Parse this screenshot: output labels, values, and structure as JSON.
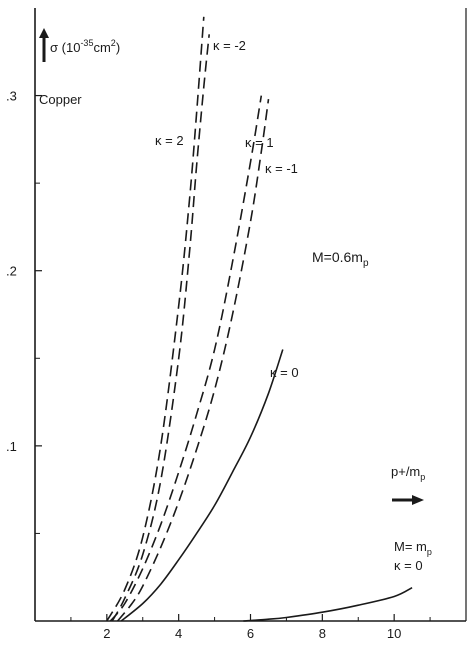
{
  "chart_data": {
    "type": "line",
    "xlabel": "p+/m",
    "xlabel_sub": "p",
    "ylabel_prefix": "σ (10",
    "ylabel_exp1": "-35",
    "ylabel_mid": "cm",
    "ylabel_exp2": "2",
    "ylabel_suffix": ")",
    "material_label": "Copper",
    "xlim": [
      0,
      12
    ],
    "ylim": [
      0,
      0.35
    ],
    "xticks": [
      2,
      4,
      6,
      8,
      10
    ],
    "yticks": [
      0.1,
      0.2,
      0.3
    ],
    "ytick_labels": [
      ".1",
      ".2",
      ".3"
    ],
    "group_label_M06_prefix": "M=0.6m",
    "group_label_M06_sub": "p",
    "group_label_Mmp_line1_prefix": "M= m",
    "group_label_Mmp_line1_sub": "p",
    "group_label_Mmp_line2": "κ = 0",
    "series": [
      {
        "name": "κ = -2",
        "dashed": true,
        "points": [
          [
            2.15,
            0.0
          ],
          [
            2.5,
            0.013
          ],
          [
            3.0,
            0.038
          ],
          [
            3.5,
            0.08
          ],
          [
            4.0,
            0.15
          ],
          [
            4.3,
            0.21
          ],
          [
            4.5,
            0.26
          ],
          [
            4.7,
            0.305
          ],
          [
            4.85,
            0.335
          ]
        ]
      },
      {
        "name": "κ = 2",
        "dashed": true,
        "points": [
          [
            2.0,
            0.0
          ],
          [
            2.5,
            0.018
          ],
          [
            3.0,
            0.048
          ],
          [
            3.5,
            0.1
          ],
          [
            4.0,
            0.18
          ],
          [
            4.3,
            0.24
          ],
          [
            4.5,
            0.29
          ],
          [
            4.7,
            0.345
          ]
        ]
      },
      {
        "name": "κ = 1",
        "dashed": true,
        "points": [
          [
            2.1,
            0.0
          ],
          [
            2.5,
            0.01
          ],
          [
            3.0,
            0.03
          ],
          [
            3.5,
            0.055
          ],
          [
            4.0,
            0.085
          ],
          [
            4.5,
            0.118
          ],
          [
            5.0,
            0.155
          ],
          [
            5.5,
            0.205
          ],
          [
            6.0,
            0.262
          ],
          [
            6.3,
            0.3
          ]
        ]
      },
      {
        "name": "κ = -1",
        "dashed": true,
        "points": [
          [
            2.3,
            0.0
          ],
          [
            2.7,
            0.01
          ],
          [
            3.0,
            0.02
          ],
          [
            3.5,
            0.042
          ],
          [
            4.0,
            0.068
          ],
          [
            4.5,
            0.098
          ],
          [
            5.0,
            0.132
          ],
          [
            5.5,
            0.175
          ],
          [
            6.0,
            0.228
          ],
          [
            6.3,
            0.268
          ],
          [
            6.5,
            0.298
          ]
        ]
      },
      {
        "name": "κ = 0",
        "dashed": false,
        "points": [
          [
            2.4,
            0.0
          ],
          [
            3.0,
            0.01
          ],
          [
            3.5,
            0.021
          ],
          [
            4.0,
            0.035
          ],
          [
            4.5,
            0.05
          ],
          [
            5.0,
            0.066
          ],
          [
            5.5,
            0.085
          ],
          [
            6.0,
            0.105
          ],
          [
            6.5,
            0.13
          ],
          [
            6.9,
            0.155
          ]
        ]
      },
      {
        "name": "M = m_p, κ = 0",
        "dashed": false,
        "points": [
          [
            5.8,
            0.0
          ],
          [
            6.5,
            0.001
          ],
          [
            7.0,
            0.002
          ],
          [
            8.0,
            0.005
          ],
          [
            9.0,
            0.009
          ],
          [
            10.0,
            0.014
          ],
          [
            10.5,
            0.019
          ]
        ]
      }
    ]
  }
}
